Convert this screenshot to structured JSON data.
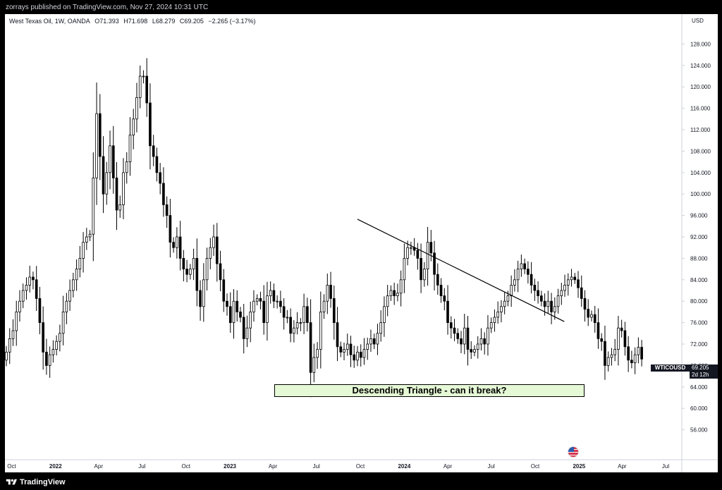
{
  "header": {
    "published": "zorrays published on TradingView.com, Nov 27, 2024 10:31 UTC"
  },
  "legend": {
    "symbol": "West Texas Oil, 1W, OANDA",
    "open": "O71.393",
    "high": "H71.698",
    "low": "L68.279",
    "close": "C69.205",
    "change": "−2.265 (−3.17%)"
  },
  "currency": "USD",
  "ticker_tag": {
    "symbol": "WTICOUSD",
    "price": "69.205",
    "countdown": "2d 12h"
  },
  "annotation": {
    "text": "Descending Triangle - can it break?",
    "fill": "#e6f9d6"
  },
  "footer": {
    "brand": "TradingView"
  },
  "colors": {
    "up": "#ffffff",
    "down": "#000000",
    "wick": "#000000",
    "trendline": "#000000",
    "flag": "us-flag-icon"
  },
  "chart_data": {
    "type": "candlestick",
    "title": "West Texas Oil, 1W, OANDA",
    "ylim": [
      52,
      132
    ],
    "y_ticks": [
      128,
      124,
      120,
      116,
      112,
      108,
      104,
      100,
      96,
      92,
      88,
      84,
      80,
      76,
      72,
      68,
      64,
      60,
      56
    ],
    "y_tick_labels": [
      "128.000",
      "124.000",
      "120.000",
      "116.000",
      "112.000",
      "108.000",
      "104.000",
      "100.000",
      "96.000",
      "92.000",
      "88.000",
      "84.000",
      "80.000",
      "76.000",
      "72.000",
      "68.000",
      "64.000",
      "60.000",
      "56.000"
    ],
    "x_ticks": [
      "Oct",
      "2022",
      "Apr",
      "Jul",
      "Oct",
      "2023",
      "Apr",
      "Jul",
      "Oct",
      "2024",
      "Apr",
      "Jul",
      "Oct",
      "2025",
      "Apr",
      "Jul"
    ],
    "x_tick_dates": [
      "2021-10-01",
      "2022-01-01",
      "2022-04-01",
      "2022-07-01",
      "2022-10-01",
      "2023-01-01",
      "2023-04-01",
      "2023-07-01",
      "2023-10-01",
      "2024-01-01",
      "2024-04-01",
      "2024-07-01",
      "2024-10-01",
      "2025-01-01",
      "2025-04-01",
      "2025-07-01"
    ],
    "closes": [
      70.5,
      73,
      74.5,
      78,
      80,
      82,
      83,
      84.5,
      84,
      80.5,
      76,
      70.5,
      68,
      70,
      71,
      72.5,
      74,
      78,
      80,
      82,
      84,
      86,
      88,
      91,
      92,
      92.5,
      103,
      115,
      107,
      100,
      104,
      109,
      103,
      97,
      98,
      104,
      106,
      111,
      114,
      118,
      122,
      122,
      117,
      109,
      107,
      104,
      102,
      98,
      96,
      91,
      90,
      92,
      88,
      86,
      85,
      86,
      88,
      82,
      79,
      84,
      88,
      90,
      92,
      87,
      84,
      80,
      79,
      76,
      80,
      78,
      77,
      73,
      75,
      78,
      80,
      80.5,
      80,
      76,
      81,
      82,
      80,
      80,
      79,
      77,
      77,
      74,
      75,
      76,
      76,
      79,
      76,
      66.7,
      69.5,
      71,
      78,
      80,
      83,
      80.5,
      76,
      71.5,
      70.5,
      71,
      72,
      70,
      69,
      70.5,
      69.5,
      71,
      72,
      73,
      72,
      74,
      76,
      79,
      81,
      82,
      81,
      81.5,
      84,
      88,
      90,
      90,
      89.5,
      88,
      84,
      86,
      91,
      89,
      85,
      83,
      81,
      80,
      76,
      75,
      74,
      73,
      72,
      75,
      71,
      70.5,
      71,
      72,
      73,
      72,
      75,
      76,
      77,
      78,
      79,
      80,
      81,
      83,
      84,
      86,
      87,
      86,
      85,
      83,
      82,
      81,
      80,
      79,
      80,
      78,
      79,
      81,
      82,
      83,
      84,
      84.5,
      84,
      82.5,
      80.5,
      78.5,
      77,
      77.5,
      76,
      73,
      72.5,
      68,
      69.5,
      70,
      71,
      75,
      74.5,
      71.5,
      69,
      68.5,
      70,
      71.4,
      69.2
    ],
    "start_date": "2021-09-20",
    "interval_days": 7,
    "trendline": {
      "from": {
        "date": "2023-09-25",
        "price": 95.3
      },
      "to": {
        "date": "2024-12-01",
        "price": 76.2
      }
    },
    "support_zone": {
      "from_date": "2023-03-13",
      "to_date": "2024-12-01",
      "price_low": 64.3,
      "price_high": 65.9
    }
  }
}
